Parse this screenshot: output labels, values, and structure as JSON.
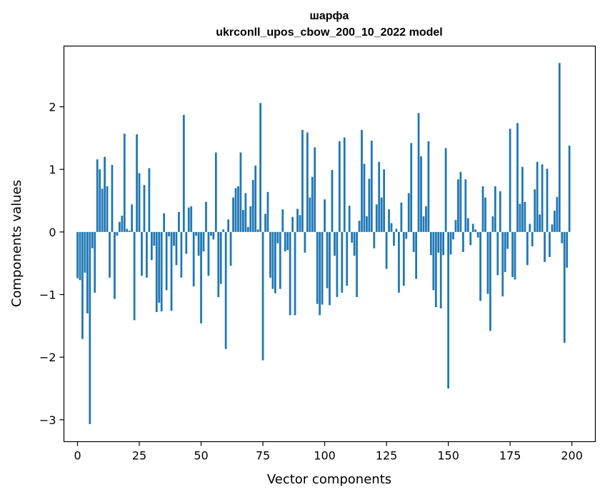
{
  "chart_data": {
    "type": "bar",
    "title": "шарфа",
    "subtitle": "ukrconll_upos_cbow_200_10_2022 model",
    "xlabel": "Vector components",
    "ylabel": "Components values",
    "xlim": [
      -5.5,
      209.5
    ],
    "ylim": [
      -3.35,
      2.97
    ],
    "xticks": [
      0,
      25,
      50,
      75,
      100,
      125,
      150,
      175,
      200
    ],
    "xtick_labels": [
      "0",
      "25",
      "50",
      "75",
      "100",
      "125",
      "150",
      "175",
      "200"
    ],
    "yticks": [
      -3,
      -2,
      -1,
      0,
      1,
      2
    ],
    "ytick_labels": [
      "−3",
      "−2",
      "−1",
      "0",
      "1",
      "2"
    ],
    "bar_color": "#1f77b4",
    "grid": false,
    "x": [
      0,
      1,
      2,
      3,
      4,
      5,
      6,
      7,
      8,
      9,
      10,
      11,
      12,
      13,
      14,
      15,
      16,
      17,
      18,
      19,
      20,
      21,
      22,
      23,
      24,
      25,
      26,
      27,
      28,
      29,
      30,
      31,
      32,
      33,
      34,
      35,
      36,
      37,
      38,
      39,
      40,
      41,
      42,
      43,
      44,
      45,
      46,
      47,
      48,
      49,
      50,
      51,
      52,
      53,
      54,
      55,
      56,
      57,
      58,
      59,
      60,
      61,
      62,
      63,
      64,
      65,
      66,
      67,
      68,
      69,
      70,
      71,
      72,
      73,
      74,
      75,
      76,
      77,
      78,
      79,
      80,
      81,
      82,
      83,
      84,
      85,
      86,
      87,
      88,
      89,
      90,
      91,
      92,
      93,
      94,
      95,
      96,
      97,
      98,
      99,
      100,
      101,
      102,
      103,
      104,
      105,
      106,
      107,
      108,
      109,
      110,
      111,
      112,
      113,
      114,
      115,
      116,
      117,
      118,
      119,
      120,
      121,
      122,
      123,
      124,
      125,
      126,
      127,
      128,
      129,
      130,
      131,
      132,
      133,
      134,
      135,
      136,
      137,
      138,
      139,
      140,
      141,
      142,
      143,
      144,
      145,
      146,
      147,
      148,
      149,
      150,
      151,
      152,
      153,
      154,
      155,
      156,
      157,
      158,
      159,
      160,
      161,
      162,
      163,
      164,
      165,
      166,
      167,
      168,
      169,
      170,
      171,
      172,
      173,
      174,
      175,
      176,
      177,
      178,
      179,
      180,
      181,
      182,
      183,
      184,
      185,
      186,
      187,
      188,
      189,
      190,
      191,
      192,
      193,
      194,
      195,
      196,
      197,
      198,
      199
    ],
    "values": [
      -0.74,
      -0.77,
      -1.71,
      -0.65,
      -1.3,
      -3.07,
      -0.26,
      -0.97,
      1.16,
      1.0,
      0.69,
      1.2,
      0.73,
      -0.73,
      1.07,
      -1.07,
      -0.06,
      0.16,
      0.26,
      1.57,
      0.05,
      0.02,
      0.44,
      -1.41,
      1.56,
      0.94,
      -0.7,
      0.75,
      -0.73,
      1.02,
      -0.45,
      -0.22,
      -1.28,
      -1.13,
      -1.27,
      0.3,
      -0.93,
      -0.07,
      -1.26,
      -0.22,
      -0.53,
      0.32,
      -0.73,
      1.87,
      -0.35,
      0.39,
      0.41,
      -0.87,
      -0.06,
      -0.38,
      -1.46,
      -0.31,
      0.48,
      -0.7,
      -0.06,
      -0.12,
      1.27,
      -1.04,
      -0.83,
      0.04,
      -1.87,
      0.2,
      -0.54,
      0.55,
      0.7,
      0.73,
      1.27,
      0.35,
      0.62,
      0.08,
      0.41,
      0.83,
      1.06,
      0.04,
      2.06,
      -2.05,
      0.29,
      0.64,
      -0.73,
      -0.91,
      -0.98,
      -0.18,
      -0.91,
      0.36,
      -0.31,
      -0.29,
      -1.33,
      0.24,
      -1.33,
      0.37,
      0.27,
      1.63,
      -0.33,
      1.59,
      0.55,
      0.88,
      1.35,
      -1.15,
      -1.33,
      -1.16,
      0.52,
      -0.9,
      -1.17,
      0.99,
      -0.38,
      -1.04,
      1.45,
      -0.97,
      1.51,
      -0.86,
      0.42,
      -0.17,
      -0.38,
      -1.04,
      0.18,
      1.63,
      1.09,
      0.25,
      0.85,
      1.46,
      -0.26,
      0.44,
      1.12,
      0.55,
      1.0,
      -0.59,
      0.36,
      0.14,
      -0.22,
      0.05,
      -0.97,
      0.47,
      -0.86,
      -0.11,
      0.62,
      1.42,
      -0.32,
      -0.75,
      1.9,
      1.21,
      0.25,
      0.41,
      1.45,
      -0.37,
      -0.93,
      -1.2,
      -0.33,
      -1.22,
      -0.37,
      1.34,
      -2.5,
      -0.36,
      -0.12,
      0.19,
      0.84,
      0.96,
      -0.32,
      0.84,
      0.22,
      -0.21,
      0.13,
      0.04,
      -0.09,
      -1.1,
      0.73,
      0.55,
      -0.99,
      -1.58,
      0.25,
      0.73,
      -0.69,
      0.65,
      -1.03,
      -0.64,
      -0.27,
      1.65,
      -0.72,
      -0.76,
      1.74,
      0.45,
      1.04,
      0.48,
      -0.53,
      0.13,
      -0.23,
      0.68,
      1.12,
      0.28,
      1.08,
      -0.48,
      1.01,
      -0.4,
      0.12,
      0.34,
      0.56,
      2.7,
      -0.18,
      -1.77,
      -0.57,
      1.38
    ]
  }
}
